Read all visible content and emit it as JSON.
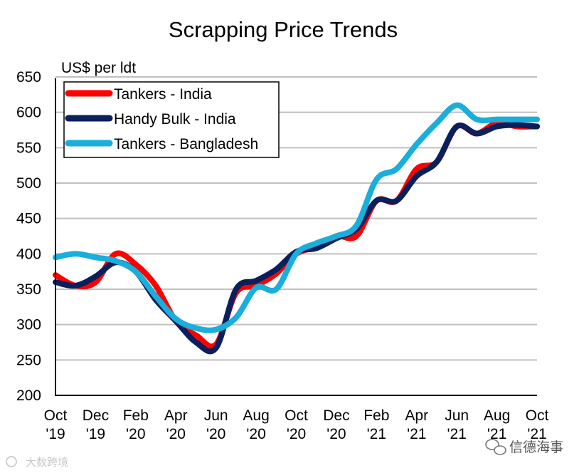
{
  "chart_data": {
    "type": "line",
    "title": "Scrapping Price Trends",
    "ylabel": "US$ per ldt",
    "xlabel": "",
    "ylim": [
      200,
      650
    ],
    "yticks": [
      200,
      250,
      300,
      350,
      400,
      450,
      500,
      550,
      600,
      650
    ],
    "grid": true,
    "legend_position": "top-left",
    "x_tick_labels": [
      {
        "month": "Oct",
        "year": "'19"
      },
      {
        "month": "Dec",
        "year": "'19"
      },
      {
        "month": "Feb",
        "year": "'20"
      },
      {
        "month": "Apr",
        "year": "'20"
      },
      {
        "month": "Jun",
        "year": "'20"
      },
      {
        "month": "Aug",
        "year": "'20"
      },
      {
        "month": "Oct",
        "year": "'20"
      },
      {
        "month": "Dec",
        "year": "'20"
      },
      {
        "month": "Feb",
        "year": "'21"
      },
      {
        "month": "Apr",
        "year": "'21"
      },
      {
        "month": "Jun",
        "year": "'21"
      },
      {
        "month": "Aug",
        "year": "'21"
      },
      {
        "month": "Oct",
        "year": "'21"
      }
    ],
    "x": [
      0,
      1,
      2,
      3,
      4,
      5,
      6,
      7,
      8,
      9,
      10,
      11,
      12,
      13,
      14,
      15,
      16,
      17,
      18,
      19,
      20,
      21,
      22,
      23,
      24
    ],
    "series": [
      {
        "name": "Tankers - India",
        "color": "#ff0000",
        "values": [
          370,
          355,
          360,
          400,
          385,
          355,
          305,
          285,
          272,
          345,
          355,
          372,
          400,
          410,
          425,
          425,
          475,
          475,
          520,
          530,
          580,
          570,
          585,
          580,
          580
        ]
      },
      {
        "name": "Handy Bulk - India",
        "color": "#0a1f5c",
        "values": [
          360,
          355,
          368,
          388,
          375,
          335,
          305,
          275,
          267,
          350,
          362,
          378,
          403,
          408,
          422,
          435,
          475,
          475,
          510,
          530,
          580,
          570,
          580,
          582,
          580
        ]
      },
      {
        "name": "Tankers - Bangladesh",
        "color": "#1aaedb",
        "values": [
          395,
          400,
          395,
          390,
          375,
          340,
          308,
          295,
          293,
          310,
          352,
          350,
          400,
          415,
          425,
          440,
          505,
          520,
          555,
          585,
          610,
          590,
          590,
          590,
          590
        ]
      }
    ]
  },
  "watermark": {
    "left": "大数跨境",
    "right": "信德海事"
  }
}
